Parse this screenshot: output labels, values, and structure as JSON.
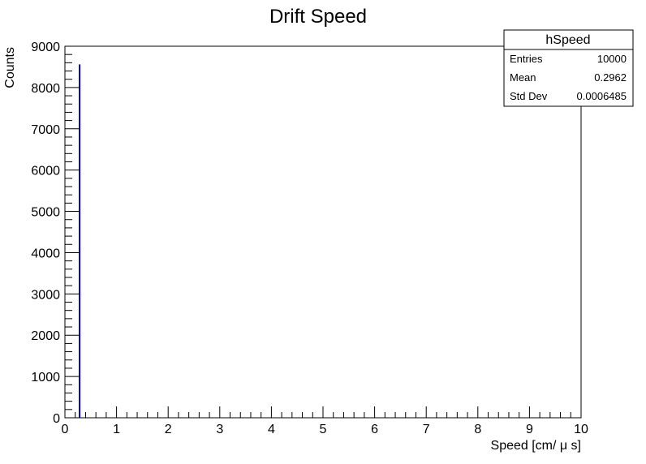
{
  "chart_data": {
    "type": "bar",
    "title": "Drift Speed",
    "xlabel": "Speed [cm/ μ s]",
    "ylabel": "Counts",
    "xlim": [
      0,
      10
    ],
    "ylim": [
      0,
      9000
    ],
    "x_ticks": [
      0,
      1,
      2,
      3,
      4,
      5,
      6,
      7,
      8,
      9,
      10
    ],
    "y_ticks": [
      0,
      1000,
      2000,
      3000,
      4000,
      5000,
      6000,
      7000,
      8000,
      9000
    ],
    "grid": false,
    "bars": [
      {
        "x": 0.3,
        "value": 8560
      }
    ],
    "bar_color": "#000099",
    "stats_box": {
      "title": "hSpeed",
      "placement": "top-right",
      "rows": [
        {
          "label": "Entries",
          "value": "10000"
        },
        {
          "label": "Mean",
          "value": "0.2962"
        },
        {
          "label": "Std Dev",
          "value": "0.0006485"
        }
      ]
    }
  }
}
